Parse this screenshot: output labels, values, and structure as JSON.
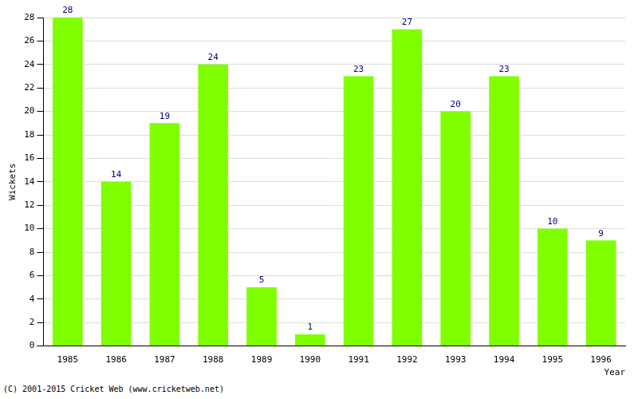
{
  "chart_data": {
    "type": "bar",
    "x_label": "Year",
    "y_label": "Wickets",
    "annotations": [
      "(C) 2001-2015 Cricket Web (www.cricketweb.net)"
    ],
    "categories": [
      "1985",
      "1986",
      "1987",
      "1988",
      "1989",
      "1990",
      "1991",
      "1992",
      "1993",
      "1994",
      "1995",
      "1996"
    ],
    "values": [
      28,
      14,
      19,
      24,
      5,
      1,
      23,
      27,
      20,
      23,
      10,
      9
    ],
    "color": "#80ff00",
    "ylim": [
      0,
      28
    ],
    "yticks": [
      0,
      2,
      4,
      6,
      8,
      10,
      12,
      14,
      16,
      18,
      20,
      22,
      24,
      26,
      28
    ],
    "grid": true,
    "data_labels": true
  }
}
